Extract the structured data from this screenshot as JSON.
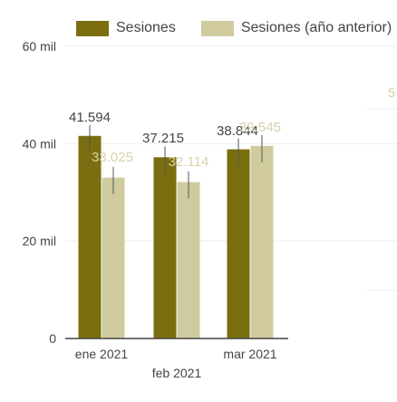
{
  "chart_data": {
    "type": "bar",
    "categories": [
      "ene 2021",
      "feb 2021",
      "mar 2021"
    ],
    "series": [
      {
        "name": "Sesiones",
        "values": [
          41594,
          37215,
          38844
        ],
        "labels": [
          "41.594",
          "37.215",
          "38.844"
        ],
        "color": "#7a6e10"
      },
      {
        "name": "Sesiones (año anterior)",
        "values": [
          33025,
          32114,
          39545
        ],
        "labels": [
          "33.025",
          "32.114",
          "39.545"
        ],
        "color": "#d0cb9e"
      }
    ],
    "ylim": [
      0,
      60000
    ],
    "yticks": [
      0,
      20000,
      40000,
      60000
    ],
    "ytick_labels": [
      "0",
      "20 mil",
      "40 mil",
      "60 mil"
    ],
    "grid": true,
    "legend_position": "top",
    "edge_fragment": "5",
    "axis_color": "#444444",
    "grid_color": "#eeeeee"
  }
}
